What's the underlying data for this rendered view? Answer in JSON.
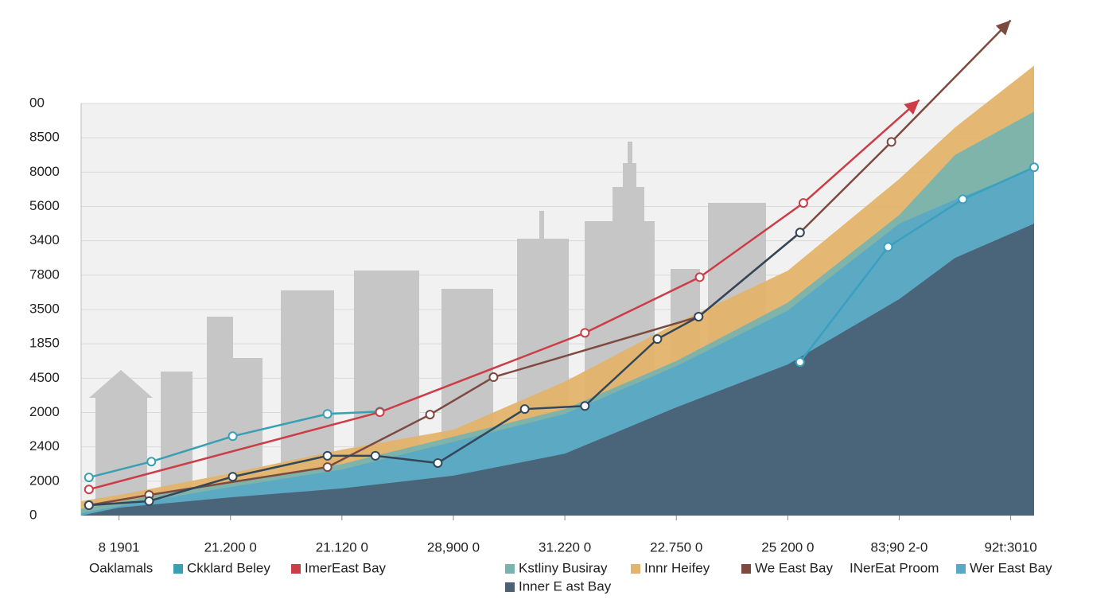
{
  "chart_data": {
    "type": "area-line",
    "xlim": [
      0.66,
      9.21
    ],
    "xticks": [
      {
        "value": 1,
        "label": "8 1901"
      },
      {
        "value": 2,
        "label": "21.200 0"
      },
      {
        "value": 3,
        "label": "21.120 0"
      },
      {
        "value": 4,
        "label": "28,900 0"
      },
      {
        "value": 5,
        "label": "31.220 0"
      },
      {
        "value": 6,
        "label": "22.750 0"
      },
      {
        "value": 7,
        "label": "25 200 0"
      },
      {
        "value": 8,
        "label": "83;90 2-0"
      },
      {
        "value": 9,
        "label": "92t:3010"
      }
    ],
    "ylim": [
      0,
      12
    ],
    "yticks": [
      0,
      {
        "value": 1,
        "label": "2000"
      },
      {
        "value": 2,
        "label": "2400"
      },
      {
        "value": 3,
        "label": "2000"
      },
      {
        "value": 4,
        "label": "4500"
      },
      {
        "value": 5,
        "label": "1850"
      },
      {
        "value": 6,
        "label": "3500"
      },
      {
        "value": 7,
        "label": "7800"
      },
      {
        "value": 8,
        "label": "3400"
      },
      {
        "value": 9,
        "label": "5600"
      },
      {
        "value": 10,
        "label": "8000"
      },
      {
        "value": 11,
        "label": "8500"
      },
      {
        "value": 12,
        "label": "00"
      }
    ],
    "grid": true,
    "x": [
      0.66,
      1,
      2,
      3,
      4,
      5,
      6,
      7,
      8,
      8.5,
      9.21
    ],
    "areas": [
      {
        "name": "Innr Heifey",
        "color": "#e3b46c",
        "values": [
          0.42,
          0.6,
          1.23,
          1.92,
          2.5,
          3.9,
          5.6,
          7.13,
          9.8,
          11.3,
          13.1
        ]
      },
      {
        "name": "Kstliny Busiray",
        "color": "#79b3ad",
        "values": [
          0.2,
          0.4,
          1.0,
          1.5,
          2.3,
          3.1,
          4.5,
          6.2,
          8.75,
          10.5,
          11.76
        ]
      },
      {
        "name": "Wer East Bay",
        "color": "#5aa9c4",
        "values": [
          0.07,
          0.28,
          0.83,
          1.34,
          2.15,
          2.96,
          4.35,
          5.97,
          8.5,
          9.2,
          10.1
        ]
      },
      {
        "name": "Inner E ast Bay",
        "color": "#4a6075",
        "values": [
          0,
          0.23,
          0.53,
          0.79,
          1.16,
          1.8,
          3.15,
          4.4,
          6.3,
          7.5,
          8.5
        ]
      }
    ],
    "lines": [
      {
        "name": "Ckklard Beley",
        "color": "#3b9fb3",
        "markers": true,
        "arrow": false,
        "legend_swatch": true,
        "x": [
          0.73,
          1.29,
          2.02,
          2.87,
          3.34
        ],
        "values": [
          1.11,
          1.57,
          2.31,
          2.96,
          3.03
        ]
      },
      {
        "name": "ImerEast Bay",
        "color": "#cc3d47",
        "markers": true,
        "arrow": true,
        "legend_swatch": true,
        "x": [
          0.73,
          3.34,
          5.18,
          6.21,
          7.14,
          8.18
        ],
        "values": [
          0.76,
          3.01,
          5.32,
          6.94,
          9.1,
          12.1
        ]
      },
      {
        "name": "We East Bay",
        "color": "#7d4a40",
        "markers": true,
        "arrow": true,
        "legend_swatch": true,
        "x": [
          0.73,
          1.27,
          2.87,
          3.79,
          4.36,
          6.2,
          7.11,
          7.93,
          9.0
        ],
        "values": [
          0.3,
          0.6,
          1.41,
          2.94,
          4.03,
          5.79,
          8.24,
          10.88,
          14.42
        ]
      },
      {
        "name": "Oaklamals",
        "color": "#33475a",
        "markers": true,
        "arrow": false,
        "legend_swatch": false,
        "x": [
          0.73,
          1.27,
          2.02,
          2.87,
          3.3,
          3.86,
          4.64,
          5.18,
          5.83,
          6.2,
          7.11
        ],
        "values": [
          0.3,
          0.42,
          1.13,
          1.74,
          1.74,
          1.53,
          3.1,
          3.19,
          5.14,
          5.79,
          8.24
        ]
      },
      {
        "name": "INerEat Proom",
        "color": "#3aa0c0",
        "markers": true,
        "arrow": false,
        "legend_swatch": false,
        "x": [
          7.11,
          7.9,
          8.57,
          9.21
        ],
        "values": [
          4.47,
          7.82,
          9.21,
          10.14
        ]
      }
    ]
  }
}
